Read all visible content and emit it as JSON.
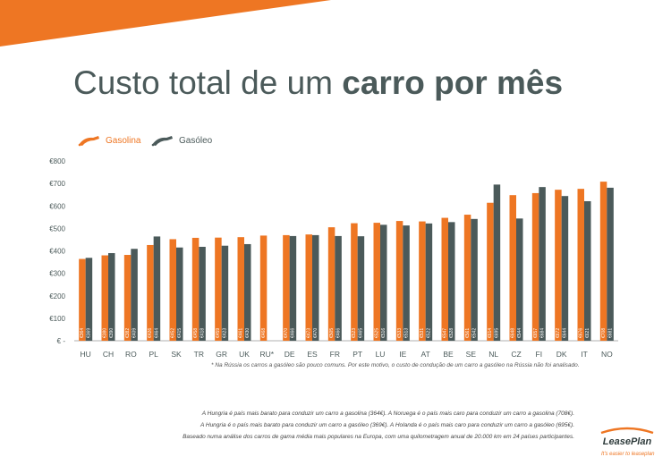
{
  "title_regular": "Custo total de um ",
  "title_bold": "carro por mês",
  "footnote": "* Na Rússia os carros a gasóleo são pouco comuns. Por este motivo, o custo de condução de um carro a gasóleo na Rússia não foi analisado.",
  "footer_lines": [
    "A Hungria é país mais  barato para conduzir um carro a gasolina (364€). A Noruega é o país mais caro para conduzir um carro a gasolina (708€).",
    "A Hungria é o país mais  barato para conduzir um carro a gasóleo (369€). A Holanda é o país mais caro para conduzir um carro a gasóleo (695€).",
    "Baseado numa análise dos carros de gama média mais populares na Europa, com uma quilometragem anual de 20.000 km em 24 países participantes."
  ],
  "logo_text": "LeasePlan",
  "logo_tagline": "It's easier to leaseplan",
  "colors": {
    "gasolina": "#ee7623",
    "gasoleo": "#4b5a5a",
    "accent": "#ee7623"
  },
  "chart_data": {
    "type": "bar",
    "categories": [
      "HU",
      "CH",
      "RO",
      "PL",
      "SK",
      "TR",
      "GR",
      "UK",
      "RU*",
      "DE",
      "ES",
      "FR",
      "PT",
      "LU",
      "IE",
      "AT",
      "BE",
      "SE",
      "NL",
      "CZ",
      "FI",
      "DK",
      "IT",
      "NO"
    ],
    "series": [
      {
        "name": "Gasolina",
        "values": [
          364,
          380,
          382,
          426,
          452,
          458,
          459,
          461,
          468,
          470,
          473,
          505,
          523,
          525,
          533,
          531,
          547,
          561,
          614,
          648,
          657,
          672,
          676,
          708
        ]
      },
      {
        "name": "Gasóleo",
        "values": [
          369,
          390,
          409,
          464,
          415,
          418,
          423,
          430,
          null,
          466,
          470,
          466,
          465,
          516,
          513,
          522,
          528,
          542,
          695,
          544,
          684,
          644,
          621,
          681
        ]
      }
    ],
    "value_labels": {
      "gasolina": [
        "€364",
        "€380",
        "€382",
        "€426",
        "€452",
        "€458",
        "€459",
        "€461",
        "€468",
        "€470",
        "€473",
        "€505",
        "€523",
        "€525",
        "€533",
        "€531",
        "€547",
        "€561",
        "€614",
        "€648",
        "€657",
        "€672",
        "€676",
        "€708"
      ],
      "gasoleo": [
        "€369",
        "€390",
        "€409",
        "€464",
        "€415",
        "€418",
        "€423",
        "€430",
        "",
        "€466",
        "€470",
        "€466",
        "€465",
        "€516",
        "€513",
        "€522",
        "€528",
        "€542",
        "€695",
        "€544",
        "€684",
        "€644",
        "€621",
        "€681"
      ]
    },
    "y_ticks": [
      0,
      100,
      200,
      300,
      400,
      500,
      600,
      700,
      800
    ],
    "y_tick_labels": [
      "€ -",
      "€100",
      "€200",
      "€300",
      "€400",
      "€500",
      "€600",
      "€700",
      "€800"
    ],
    "ylim": [
      0,
      800
    ],
    "legend_position": "top-left",
    "grid": false
  }
}
